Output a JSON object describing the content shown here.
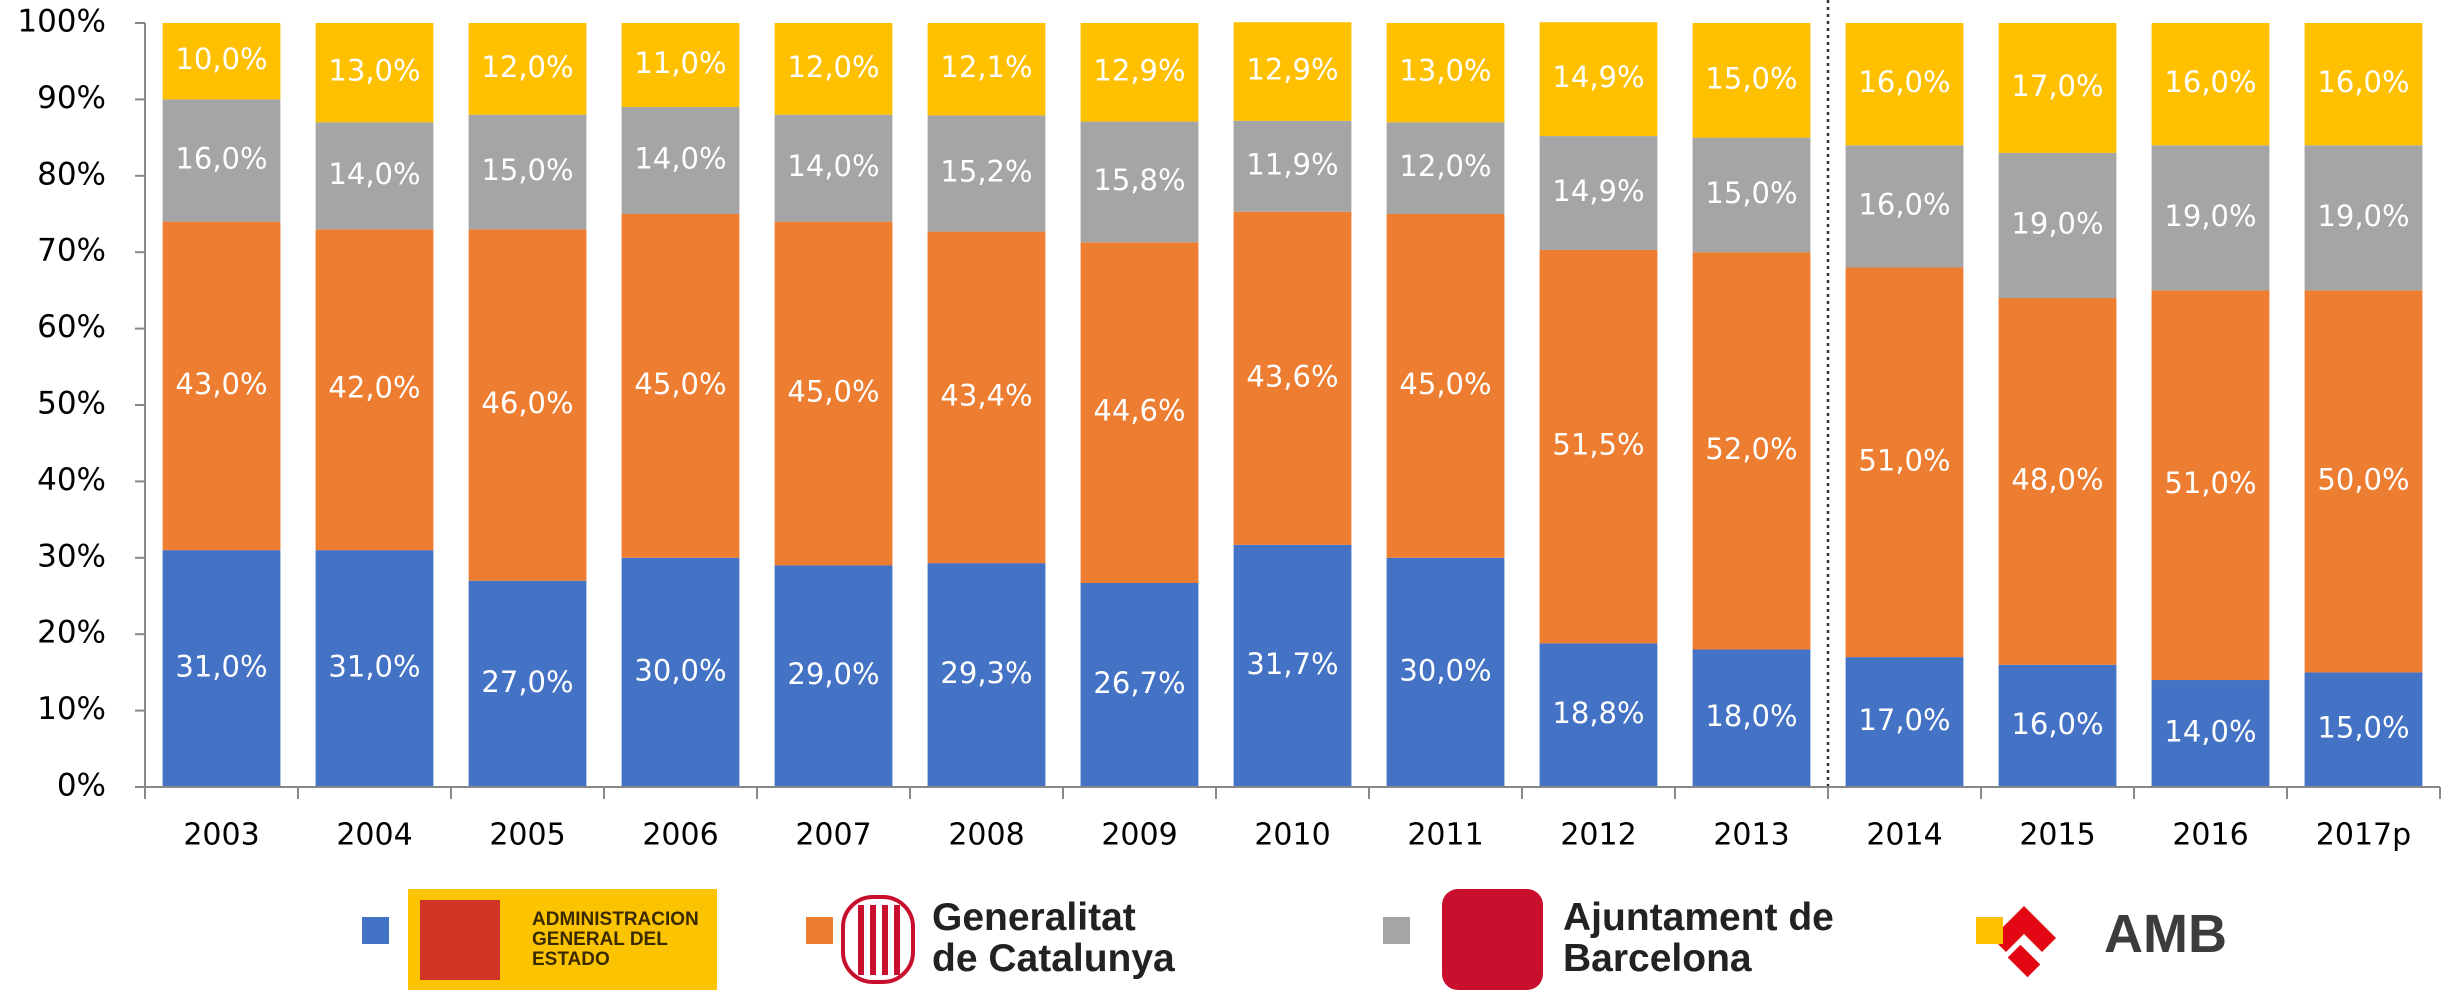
{
  "chart_data": {
    "type": "stacked_bar",
    "categories": [
      "2003",
      "2004",
      "2005",
      "2006",
      "2007",
      "2008",
      "2009",
      "2010",
      "2011",
      "2012",
      "2013",
      "2014",
      "2015",
      "2016",
      "2017p"
    ],
    "ylim": [
      0,
      100
    ],
    "yticks": [
      {
        "value": 0,
        "label": "0%"
      },
      {
        "value": 10,
        "label": "10%"
      },
      {
        "value": 20,
        "label": "20%"
      },
      {
        "value": 30,
        "label": "30%"
      },
      {
        "value": 40,
        "label": "40%"
      },
      {
        "value": 50,
        "label": "50%"
      },
      {
        "value": 60,
        "label": "60%"
      },
      {
        "value": 70,
        "label": "70%"
      },
      {
        "value": 80,
        "label": "80%"
      },
      {
        "value": 90,
        "label": "90%"
      },
      {
        "value": 100,
        "label": "100%"
      }
    ],
    "grid": false,
    "legend": "bottom",
    "series": [
      {
        "name": "ADMINISTRACIÓN GENERAL DEL ESTADO",
        "color": "#4472c4",
        "values": [
          31,
          31,
          27,
          30,
          29,
          29.3,
          26.7,
          31.7,
          30,
          18.8,
          18,
          17,
          16,
          14,
          15
        ],
        "value_labels": [
          "31,0%",
          "31,0%",
          "27,0%",
          "30,0%",
          "29,0%",
          "29,3%",
          "26,7%",
          "31,7%",
          "30,0%",
          "18,8%",
          "18,0%",
          "17,0%",
          "16,0%",
          "14,0%",
          "15,0%"
        ]
      },
      {
        "name": "Generalitat de Catalunya",
        "color": "#ed7d31",
        "values": [
          43,
          42,
          46,
          45,
          45,
          43.4,
          44.6,
          43.6,
          45,
          51.5,
          52,
          51,
          48,
          51,
          50
        ],
        "value_labels": [
          "43,0%",
          "42,0%",
          "46,0%",
          "45,0%",
          "45,0%",
          "43,4%",
          "44,6%",
          "43,6%",
          "45,0%",
          "51,5%",
          "52,0%",
          "51,0%",
          "48,0%",
          "51,0%",
          "50,0%"
        ]
      },
      {
        "name": "Ajuntament de Barcelona",
        "color": "#a5a5a5",
        "values": [
          16,
          14,
          15,
          14,
          14,
          15.2,
          15.8,
          11.9,
          12,
          14.9,
          15,
          16,
          19,
          19,
          19
        ],
        "value_labels": [
          "16,0%",
          "14,0%",
          "15,0%",
          "14,0%",
          "14,0%",
          "15,2%",
          "15,8%",
          "11,9%",
          "12,0%",
          "14,9%",
          "15,0%",
          "16,0%",
          "19,0%",
          "19,0%",
          "19,0%"
        ]
      },
      {
        "name": "AMB",
        "color": "#ffc000",
        "values": [
          10,
          13,
          12,
          11,
          12,
          12.1,
          12.9,
          12.9,
          13,
          14.9,
          15,
          16,
          17,
          16,
          16
        ],
        "value_labels": [
          "10,0%",
          "13,0%",
          "12,0%",
          "11,0%",
          "12,0%",
          "12,1%",
          "12,9%",
          "12,9%",
          "13,0%",
          "14,9%",
          "15,0%",
          "16,0%",
          "17,0%",
          "16,0%",
          "16,0%"
        ]
      }
    ]
  }
}
